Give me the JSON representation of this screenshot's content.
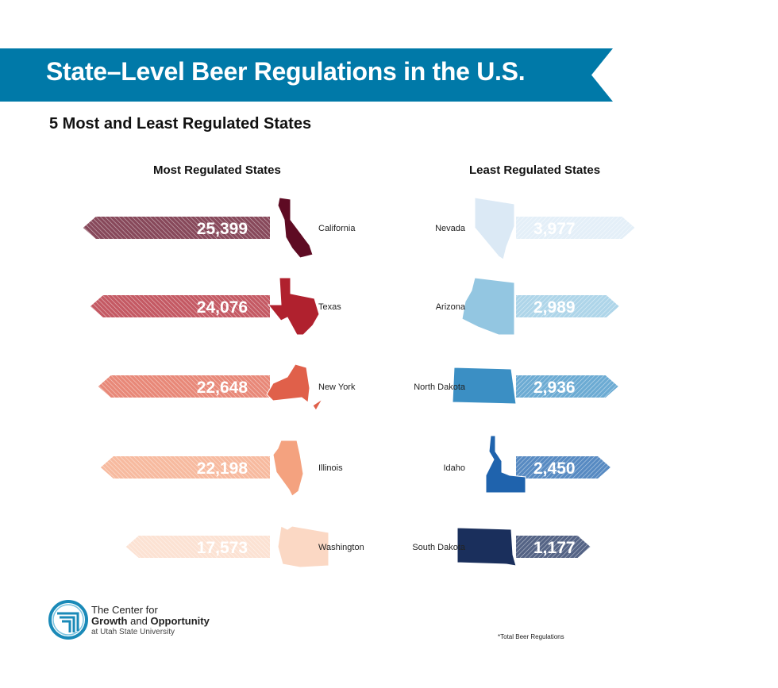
{
  "header": {
    "title": "State–Level Beer Regulations in the U.S.",
    "subtitle": "5 Most and Least Regulated States",
    "banner_color": "#0079a8"
  },
  "chart_data": {
    "type": "bar",
    "title": "State–Level Beer Regulations in the U.S.",
    "subtitle": "5 Most and Least Regulated States",
    "unit_note": "*Total Beer Regulations",
    "groups": [
      {
        "heading": "Most Regulated States",
        "direction": "left",
        "items": [
          {
            "state": "California",
            "value": 25399,
            "label": "25,399",
            "color": "#5e0b23"
          },
          {
            "state": "Texas",
            "value": 24076,
            "label": "24,076",
            "color": "#b0212e"
          },
          {
            "state": "New York",
            "value": 22648,
            "label": "22,648",
            "color": "#e0604a"
          },
          {
            "state": "Illinois",
            "value": 22198,
            "label": "22,198",
            "color": "#f4a27f"
          },
          {
            "state": "Washington",
            "value": 17573,
            "label": "17,573",
            "color": "#fbd8c4"
          }
        ]
      },
      {
        "heading": "Least Regulated States",
        "direction": "right",
        "items": [
          {
            "state": "Nevada",
            "value": 3977,
            "label": "3,977",
            "color": "#dbe9f5"
          },
          {
            "state": "Arizona",
            "value": 2989,
            "label": "2,989",
            "color": "#93c6e1"
          },
          {
            "state": "North Dakota",
            "value": 2936,
            "label": "2,936",
            "color": "#3b8fc4"
          },
          {
            "state": "Idaho",
            "value": 2450,
            "label": "2,450",
            "color": "#1f63ad"
          },
          {
            "state": "South Dakota",
            "value": 1177,
            "label": "1,177",
            "color": "#1a2f5c"
          }
        ]
      }
    ]
  },
  "logo": {
    "line1": "The Center for",
    "line2a": "Growth",
    "line2b": "and",
    "line2c": "Opportunity",
    "line3": "at Utah State University",
    "color": "#1a8ab8"
  },
  "footnote": "*Total Beer Regulations"
}
